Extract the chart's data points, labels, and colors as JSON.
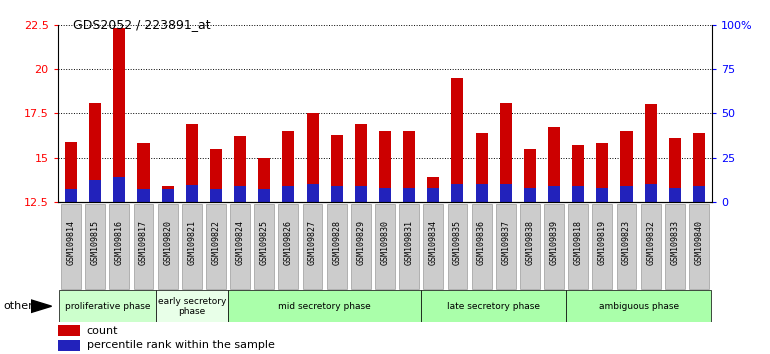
{
  "title": "GDS2052 / 223891_at",
  "samples": [
    "GSM109814",
    "GSM109815",
    "GSM109816",
    "GSM109817",
    "GSM109820",
    "GSM109821",
    "GSM109822",
    "GSM109824",
    "GSM109825",
    "GSM109826",
    "GSM109827",
    "GSM109828",
    "GSM109829",
    "GSM109830",
    "GSM109831",
    "GSM109834",
    "GSM109835",
    "GSM109836",
    "GSM109837",
    "GSM109838",
    "GSM109839",
    "GSM109818",
    "GSM109819",
    "GSM109823",
    "GSM109832",
    "GSM109833",
    "GSM109840"
  ],
  "count_values": [
    15.9,
    18.1,
    22.3,
    15.8,
    13.4,
    16.9,
    15.5,
    16.2,
    15.0,
    16.5,
    17.5,
    16.3,
    16.9,
    16.5,
    16.5,
    13.9,
    19.5,
    16.4,
    18.1,
    15.5,
    16.7,
    15.7,
    15.8,
    16.5,
    18.0,
    16.1,
    16.4
  ],
  "percentile_values": [
    13.25,
    13.75,
    13.9,
    13.2,
    13.2,
    13.45,
    13.2,
    13.4,
    13.2,
    13.4,
    13.5,
    13.4,
    13.4,
    13.3,
    13.3,
    13.3,
    13.5,
    13.5,
    13.5,
    13.3,
    13.4,
    13.4,
    13.3,
    13.4,
    13.5,
    13.3,
    13.4
  ],
  "phases": [
    {
      "label": "proliferative phase",
      "start": 0,
      "end": 4,
      "color": "#ccffcc"
    },
    {
      "label": "early secretory\nphase",
      "start": 4,
      "end": 7,
      "color": "#e8ffe8"
    },
    {
      "label": "mid secretory phase",
      "start": 7,
      "end": 15,
      "color": "#aaffaa"
    },
    {
      "label": "late secretory phase",
      "start": 15,
      "end": 21,
      "color": "#aaffaa"
    },
    {
      "label": "ambiguous phase",
      "start": 21,
      "end": 27,
      "color": "#aaffaa"
    }
  ],
  "ymin": 12.5,
  "ymax": 22.5,
  "yticks": [
    12.5,
    15.0,
    17.5,
    20.0,
    22.5
  ],
  "right_yticks_pct": [
    0,
    25,
    50,
    75,
    100
  ],
  "right_ytick_labels": [
    "0",
    "25",
    "50",
    "75",
    "100%"
  ],
  "bar_color": "#cc0000",
  "percentile_color": "#2222bb",
  "bar_width": 0.5,
  "figsize": [
    7.7,
    3.54
  ],
  "dpi": 100
}
